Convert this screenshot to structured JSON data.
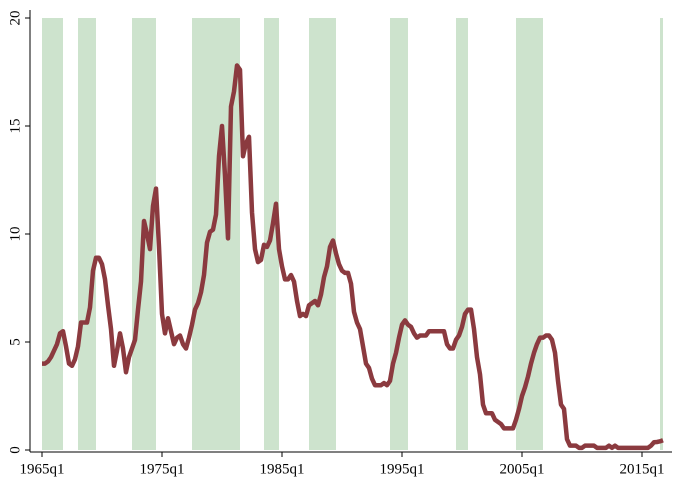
{
  "chart_data": {
    "type": "line",
    "x": [
      20,
      21,
      22,
      23,
      24,
      25,
      26,
      27,
      28,
      29,
      30,
      31,
      32,
      33,
      34,
      35,
      36,
      37,
      38,
      39,
      40,
      41,
      42,
      43,
      44,
      45,
      46,
      47,
      48,
      49,
      50,
      51,
      52,
      53,
      54,
      55,
      56,
      57,
      58,
      59,
      60,
      61,
      62,
      63,
      64,
      65,
      66,
      67,
      68,
      69,
      70,
      71,
      72,
      73,
      74,
      75,
      76,
      77,
      78,
      79,
      80,
      81,
      82,
      83,
      84,
      85,
      86,
      87,
      88,
      89,
      90,
      91,
      92,
      93,
      94,
      95,
      96,
      97,
      98,
      99,
      100,
      101,
      102,
      103,
      104,
      105,
      106,
      107,
      108,
      109,
      110,
      111,
      112,
      113,
      114,
      115,
      116,
      117,
      118,
      119,
      120,
      121,
      122,
      123,
      124,
      125,
      126,
      127,
      128,
      129,
      130,
      131,
      132,
      133,
      134,
      135,
      136,
      137,
      138,
      139,
      140,
      141,
      142,
      143,
      144,
      145,
      146,
      147,
      148,
      149,
      150,
      151,
      152,
      153,
      154,
      155,
      156,
      157,
      158,
      159,
      160,
      161,
      162,
      163,
      164,
      165,
      166,
      167,
      168,
      169,
      170,
      171,
      172,
      173,
      174,
      175,
      176,
      177,
      178,
      179,
      180,
      181,
      182,
      183,
      184,
      185,
      186,
      187,
      188,
      189,
      190,
      191,
      192,
      193,
      194,
      195,
      196,
      197,
      198,
      199,
      200,
      201,
      202,
      203,
      204,
      205,
      206,
      207,
      208,
      209,
      210,
      211,
      212,
      213,
      214,
      215,
      216,
      217,
      218,
      219,
      220,
      221,
      222,
      223,
      224,
      225,
      226,
      227
    ],
    "series": [
      {
        "color": "#8b3a3f",
        "values": [
          4.0,
          4.0,
          4.1,
          4.3,
          4.6,
          4.9,
          5.4,
          5.5,
          4.8,
          4.0,
          3.9,
          4.2,
          4.8,
          5.9,
          5.9,
          5.9,
          6.6,
          8.3,
          8.9,
          8.9,
          8.6,
          7.9,
          6.7,
          5.6,
          3.9,
          4.6,
          5.4,
          4.7,
          3.6,
          4.3,
          4.7,
          5.1,
          6.5,
          7.8,
          10.6,
          10.0,
          9.3,
          11.3,
          12.1,
          9.4,
          6.3,
          5.4,
          6.1,
          5.5,
          4.9,
          5.2,
          5.3,
          4.9,
          4.7,
          5.2,
          5.8,
          6.5,
          6.8,
          7.3,
          8.1,
          9.6,
          10.1,
          10.2,
          10.9,
          13.6,
          15.0,
          12.7,
          9.8,
          15.9,
          16.6,
          17.8,
          17.6,
          13.6,
          14.2,
          14.5,
          11.0,
          9.3,
          8.7,
          8.8,
          9.5,
          9.4,
          9.7,
          10.5,
          11.4,
          9.3,
          8.5,
          7.9,
          7.9,
          8.1,
          7.8,
          6.9,
          6.2,
          6.3,
          6.2,
          6.7,
          6.8,
          6.9,
          6.7,
          7.2,
          8.0,
          8.5,
          9.4,
          9.7,
          9.1,
          8.6,
          8.3,
          8.2,
          8.2,
          7.7,
          6.4,
          5.9,
          5.6,
          4.8,
          4.0,
          3.8,
          3.3,
          3.0,
          3.0,
          3.0,
          3.1,
          3.0,
          3.2,
          4.0,
          4.5,
          5.2,
          5.8,
          6.0,
          5.8,
          5.7,
          5.4,
          5.2,
          5.3,
          5.3,
          5.3,
          5.5,
          5.5,
          5.5,
          5.5,
          5.5,
          5.5,
          4.9,
          4.7,
          4.7,
          5.1,
          5.3,
          5.7,
          6.3,
          6.5,
          6.5,
          5.6,
          4.3,
          3.5,
          2.1,
          1.7,
          1.7,
          1.7,
          1.4,
          1.3,
          1.2,
          1.0,
          1.0,
          1.0,
          1.0,
          1.4,
          1.9,
          2.5,
          2.9,
          3.4,
          4.0,
          4.5,
          4.9,
          5.2,
          5.2,
          5.3,
          5.3,
          5.1,
          4.5,
          3.2,
          2.1,
          1.9,
          0.5,
          0.2,
          0.2,
          0.2,
          0.1,
          0.1,
          0.2,
          0.2,
          0.2,
          0.2,
          0.1,
          0.1,
          0.1,
          0.1,
          0.2,
          0.1,
          0.2,
          0.1,
          0.1,
          0.1,
          0.1,
          0.1,
          0.1,
          0.1,
          0.1,
          0.1,
          0.1,
          0.1,
          0.2,
          0.36,
          0.37,
          0.4,
          0.45
        ]
      }
    ],
    "bands": [
      [
        20,
        27
      ],
      [
        32,
        38
      ],
      [
        50,
        58
      ],
      [
        70,
        86
      ],
      [
        94,
        99
      ],
      [
        109,
        118
      ],
      [
        136,
        142
      ],
      [
        158,
        162
      ],
      [
        178,
        187
      ],
      [
        226,
        227
      ]
    ],
    "band_color": "#cde3cd",
    "xlim": [
      16,
      230
    ],
    "xticks": [
      {
        "value": 20,
        "label": "1965q1"
      },
      {
        "value": 60,
        "label": "1975q1"
      },
      {
        "value": 100,
        "label": "1985q1"
      },
      {
        "value": 140,
        "label": "1995q1"
      },
      {
        "value": 180,
        "label": "2005q1"
      },
      {
        "value": 220,
        "label": "2015q1"
      }
    ],
    "ylim": [
      0,
      20
    ],
    "yticks": [
      0,
      5,
      10,
      15,
      20
    ]
  }
}
